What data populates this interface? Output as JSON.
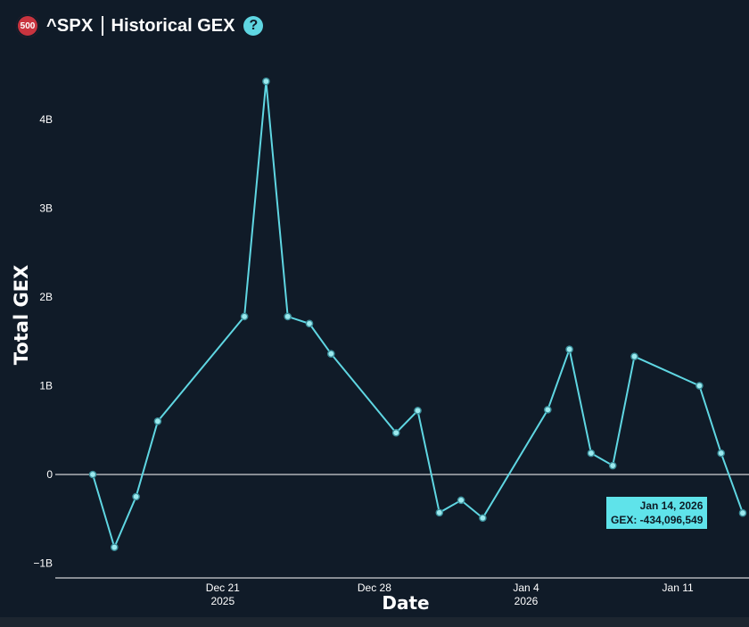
{
  "header": {
    "badge": "500",
    "ticker": "^SPX",
    "title": "Historical GEX",
    "help": "?"
  },
  "colors": {
    "background": "#101b28",
    "line": "#5fd6e2",
    "marker_fill": "#9be9ee",
    "badge": "#c9343f",
    "tooltip_bg": "#5fe3ea"
  },
  "tooltip": {
    "date": "Jan 14, 2026",
    "value": "GEX: -434,096,549"
  },
  "chart_data": {
    "type": "line",
    "title": "Historical GEX",
    "xlabel": "Date",
    "ylabel": "Total GEX",
    "x": [
      "2025-12-15",
      "2025-12-16",
      "2025-12-17",
      "2025-12-18",
      "2025-12-22",
      "2025-12-23",
      "2025-12-24",
      "2025-12-25",
      "2025-12-26",
      "2025-12-29",
      "2025-12-30",
      "2025-12-31",
      "2026-01-01",
      "2026-01-02",
      "2026-01-05",
      "2026-01-06",
      "2026-01-07",
      "2026-01-08",
      "2026-01-09",
      "2026-01-12",
      "2026-01-13",
      "2026-01-14"
    ],
    "series": [
      {
        "values": [
          0,
          -820000000,
          -250000000,
          600000000,
          1780000000,
          4430000000,
          1780000000,
          1700000000,
          1360000000,
          470000000,
          720000000,
          -430000000,
          -290000000,
          -490000000,
          730000000,
          1410000000,
          240000000,
          100000000,
          1330000000,
          1000000000,
          240000000,
          -434096549
        ]
      }
    ],
    "x_ticks": [
      {
        "date": "2025-12-21",
        "label": "Dec 21",
        "sub": "2025"
      },
      {
        "date": "2025-12-28",
        "label": "Dec 28",
        "sub": ""
      },
      {
        "date": "2026-01-04",
        "label": "Jan 4",
        "sub": "2026"
      },
      {
        "date": "2026-01-11",
        "label": "Jan 11",
        "sub": ""
      }
    ],
    "y_ticks": [
      {
        "value": -1000000000,
        "label": "−1B"
      },
      {
        "value": 0,
        "label": "0"
      },
      {
        "value": 1000000000,
        "label": "1B"
      },
      {
        "value": 2000000000,
        "label": "2B"
      },
      {
        "value": 3000000000,
        "label": "3B"
      },
      {
        "value": 4000000000,
        "label": "4B"
      }
    ],
    "ylim": [
      -1150000000,
      4500000000
    ],
    "zero_line": true,
    "grid": false
  }
}
